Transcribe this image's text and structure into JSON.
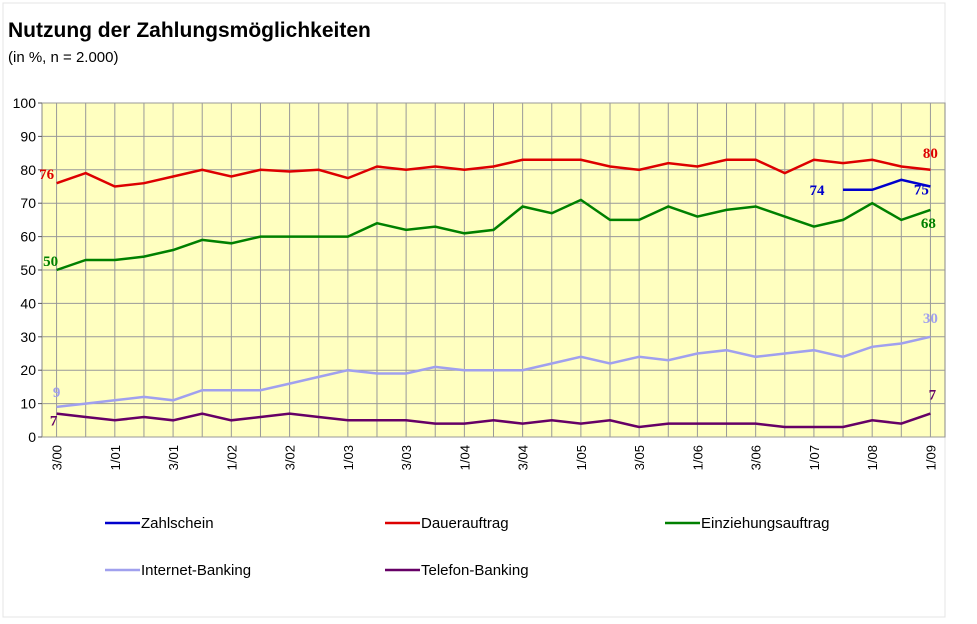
{
  "chart_data": {
    "type": "line",
    "title": "Nutzung der Zahlungsmöglichkeiten",
    "subtitle": "(in %, n = 2.000)",
    "categories": [
      "3/00",
      null,
      "1/01",
      null,
      "3/01",
      null,
      "1/02",
      null,
      "3/02",
      null,
      "1/03",
      null,
      "3/03",
      null,
      "1/04",
      null,
      "3/04",
      null,
      "1/05",
      null,
      "3/05",
      null,
      "1/06",
      null,
      "3/06",
      null,
      "1/07",
      null,
      "1/08",
      null,
      "1/09"
    ],
    "series": [
      {
        "name": "Zahlschein",
        "color": "#0000cc",
        "values": [
          null,
          null,
          null,
          null,
          null,
          null,
          null,
          null,
          null,
          null,
          null,
          null,
          null,
          null,
          null,
          null,
          null,
          null,
          null,
          null,
          null,
          null,
          null,
          null,
          null,
          null,
          null,
          74,
          74,
          77,
          75
        ]
      },
      {
        "name": "Dauerauftrag",
        "color": "#dd0000",
        "values": [
          76,
          79,
          75,
          76,
          78,
          80,
          78,
          80,
          79.5,
          80,
          77.5,
          81,
          80,
          81,
          80,
          81,
          83,
          83,
          83,
          81,
          80,
          82,
          81,
          83,
          83,
          79,
          83,
          82,
          83,
          81,
          80
        ]
      },
      {
        "name": "Einziehungsauftrag",
        "color": "#008000",
        "values": [
          50,
          53,
          53,
          54,
          56,
          59,
          58,
          60,
          60,
          60,
          60,
          64,
          62,
          63,
          61,
          62,
          69,
          67,
          71,
          65,
          65,
          69,
          66,
          68,
          69,
          66,
          63,
          65,
          70,
          65,
          68
        ]
      },
      {
        "name": "Internet-Banking",
        "color": "#a0a0ee",
        "values": [
          9,
          10,
          11,
          12,
          11,
          14,
          14,
          14,
          16,
          18,
          20,
          19,
          19,
          21,
          20,
          20,
          20,
          22,
          24,
          22,
          24,
          23,
          25,
          26,
          24,
          25,
          26,
          24,
          27,
          28,
          30
        ]
      },
      {
        "name": "Telefon-Banking",
        "color": "#660066",
        "values": [
          7,
          6,
          5,
          6,
          5,
          7,
          5,
          6,
          7,
          6,
          5,
          5,
          5,
          4,
          4,
          5,
          4,
          5,
          4,
          5,
          3,
          4,
          4,
          4,
          4,
          3,
          3,
          3,
          5,
          4,
          7
        ]
      }
    ],
    "ylim": [
      0,
      100
    ],
    "yticks": [
      0,
      10,
      20,
      30,
      40,
      50,
      60,
      70,
      80,
      90,
      100
    ],
    "grid": true,
    "legend": "bottom"
  }
}
